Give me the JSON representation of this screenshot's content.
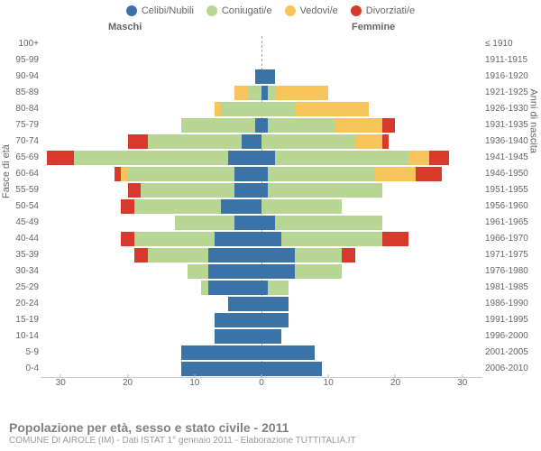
{
  "legend": {
    "items": [
      {
        "label": "Celibi/Nubili",
        "color": "#3b72a8"
      },
      {
        "label": "Coniugati/e",
        "color": "#b7d694"
      },
      {
        "label": "Vedovi/e",
        "color": "#f7c35b"
      },
      {
        "label": "Divorziati/e",
        "color": "#d73a2d"
      }
    ]
  },
  "side_labels": {
    "m": "Maschi",
    "f": "Femmine"
  },
  "axis_titles": {
    "left": "Fasce di età",
    "right": "Anni di nascita"
  },
  "footer": {
    "title": "Popolazione per età, sesso e stato civile - 2011",
    "subtitle": "COMUNE DI AIROLE (IM) - Dati ISTAT 1° gennaio 2011 - Elaborazione TUTTITALIA.IT"
  },
  "x_axis": {
    "max": 33,
    "ticks": [
      30,
      20,
      10,
      0,
      10,
      20,
      30
    ]
  },
  "colors": {
    "celibi": "#3b72a8",
    "coniugati": "#b7d694",
    "vedovi": "#f7c35b",
    "divorziati": "#d73a2d"
  },
  "rows": [
    {
      "age": "100+",
      "birth": "≤ 1910",
      "m": {
        "c": 0,
        "co": 0,
        "v": 0,
        "d": 0
      },
      "f": {
        "c": 0,
        "co": 0,
        "v": 0,
        "d": 0
      }
    },
    {
      "age": "95-99",
      "birth": "1911-1915",
      "m": {
        "c": 0,
        "co": 0,
        "v": 0,
        "d": 0
      },
      "f": {
        "c": 0,
        "co": 0,
        "v": 0,
        "d": 0
      }
    },
    {
      "age": "90-94",
      "birth": "1916-1920",
      "m": {
        "c": 1,
        "co": 0,
        "v": 0,
        "d": 0
      },
      "f": {
        "c": 2,
        "co": 0,
        "v": 0,
        "d": 0
      }
    },
    {
      "age": "85-89",
      "birth": "1921-1925",
      "m": {
        "c": 0,
        "co": 2,
        "v": 2,
        "d": 0
      },
      "f": {
        "c": 1,
        "co": 1,
        "v": 8,
        "d": 0
      }
    },
    {
      "age": "80-84",
      "birth": "1926-1930",
      "m": {
        "c": 0,
        "co": 6,
        "v": 1,
        "d": 0
      },
      "f": {
        "c": 0,
        "co": 5,
        "v": 11,
        "d": 0
      }
    },
    {
      "age": "75-79",
      "birth": "1931-1935",
      "m": {
        "c": 1,
        "co": 11,
        "v": 0,
        "d": 0
      },
      "f": {
        "c": 1,
        "co": 10,
        "v": 7,
        "d": 2
      }
    },
    {
      "age": "70-74",
      "birth": "1936-1940",
      "m": {
        "c": 3,
        "co": 14,
        "v": 0,
        "d": 3
      },
      "f": {
        "c": 0,
        "co": 14,
        "v": 4,
        "d": 1
      }
    },
    {
      "age": "65-69",
      "birth": "1941-1945",
      "m": {
        "c": 5,
        "co": 23,
        "v": 0,
        "d": 4
      },
      "f": {
        "c": 2,
        "co": 20,
        "v": 3,
        "d": 3
      }
    },
    {
      "age": "60-64",
      "birth": "1946-1950",
      "m": {
        "c": 4,
        "co": 16,
        "v": 1,
        "d": 1
      },
      "f": {
        "c": 1,
        "co": 16,
        "v": 6,
        "d": 4
      }
    },
    {
      "age": "55-59",
      "birth": "1951-1955",
      "m": {
        "c": 4,
        "co": 14,
        "v": 0,
        "d": 2
      },
      "f": {
        "c": 1,
        "co": 17,
        "v": 0,
        "d": 0
      }
    },
    {
      "age": "50-54",
      "birth": "1956-1960",
      "m": {
        "c": 6,
        "co": 13,
        "v": 0,
        "d": 2
      },
      "f": {
        "c": 0,
        "co": 12,
        "v": 0,
        "d": 0
      }
    },
    {
      "age": "45-49",
      "birth": "1961-1965",
      "m": {
        "c": 4,
        "co": 9,
        "v": 0,
        "d": 0
      },
      "f": {
        "c": 2,
        "co": 16,
        "v": 0,
        "d": 0
      }
    },
    {
      "age": "40-44",
      "birth": "1966-1970",
      "m": {
        "c": 7,
        "co": 12,
        "v": 0,
        "d": 2
      },
      "f": {
        "c": 3,
        "co": 15,
        "v": 0,
        "d": 4
      }
    },
    {
      "age": "35-39",
      "birth": "1971-1975",
      "m": {
        "c": 8,
        "co": 9,
        "v": 0,
        "d": 2
      },
      "f": {
        "c": 5,
        "co": 7,
        "v": 0,
        "d": 2
      }
    },
    {
      "age": "30-34",
      "birth": "1976-1980",
      "m": {
        "c": 8,
        "co": 3,
        "v": 0,
        "d": 0
      },
      "f": {
        "c": 5,
        "co": 7,
        "v": 0,
        "d": 0
      }
    },
    {
      "age": "25-29",
      "birth": "1981-1985",
      "m": {
        "c": 8,
        "co": 1,
        "v": 0,
        "d": 0
      },
      "f": {
        "c": 1,
        "co": 3,
        "v": 0,
        "d": 0
      }
    },
    {
      "age": "20-24",
      "birth": "1986-1990",
      "m": {
        "c": 5,
        "co": 0,
        "v": 0,
        "d": 0
      },
      "f": {
        "c": 4,
        "co": 0,
        "v": 0,
        "d": 0
      }
    },
    {
      "age": "15-19",
      "birth": "1991-1995",
      "m": {
        "c": 7,
        "co": 0,
        "v": 0,
        "d": 0
      },
      "f": {
        "c": 4,
        "co": 0,
        "v": 0,
        "d": 0
      }
    },
    {
      "age": "10-14",
      "birth": "1996-2000",
      "m": {
        "c": 7,
        "co": 0,
        "v": 0,
        "d": 0
      },
      "f": {
        "c": 3,
        "co": 0,
        "v": 0,
        "d": 0
      }
    },
    {
      "age": "5-9",
      "birth": "2001-2005",
      "m": {
        "c": 12,
        "co": 0,
        "v": 0,
        "d": 0
      },
      "f": {
        "c": 8,
        "co": 0,
        "v": 0,
        "d": 0
      }
    },
    {
      "age": "0-4",
      "birth": "2006-2010",
      "m": {
        "c": 12,
        "co": 0,
        "v": 0,
        "d": 0
      },
      "f": {
        "c": 9,
        "co": 0,
        "v": 0,
        "d": 0
      }
    }
  ]
}
